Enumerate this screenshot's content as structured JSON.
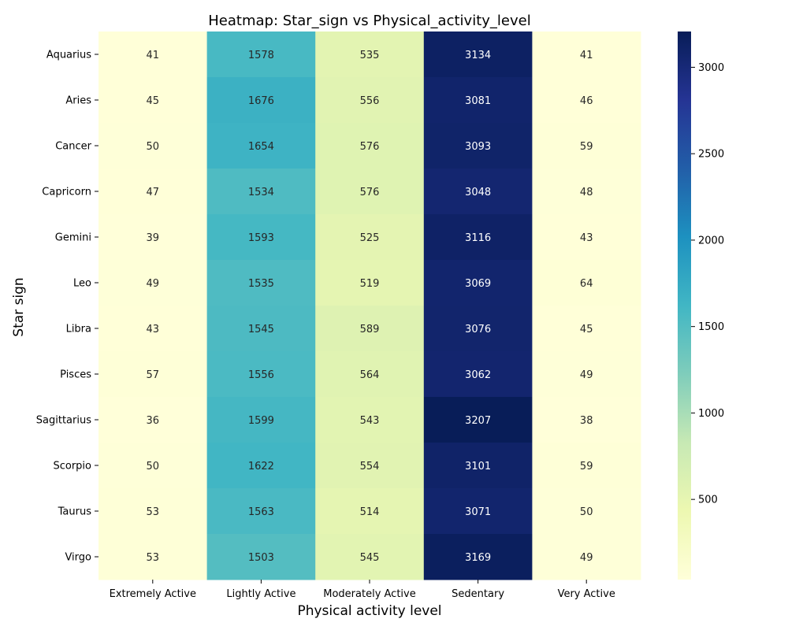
{
  "chart_data": {
    "type": "heatmap",
    "title": "Heatmap: Star_sign vs Physical_activity_level",
    "xlabel": "Physical activity level",
    "ylabel": "Star sign",
    "columns": [
      "Extremely Active",
      "Lightly Active",
      "Moderately Active",
      "Sedentary",
      "Very Active"
    ],
    "rows": [
      "Aquarius",
      "Aries",
      "Cancer",
      "Capricorn",
      "Gemini",
      "Leo",
      "Libra",
      "Pisces",
      "Sagittarius",
      "Scorpio",
      "Taurus",
      "Virgo"
    ],
    "values": [
      [
        41,
        1578,
        535,
        3134,
        41
      ],
      [
        45,
        1676,
        556,
        3081,
        46
      ],
      [
        50,
        1654,
        576,
        3093,
        59
      ],
      [
        47,
        1534,
        576,
        3048,
        48
      ],
      [
        39,
        1593,
        525,
        3116,
        43
      ],
      [
        49,
        1535,
        519,
        3069,
        64
      ],
      [
        43,
        1545,
        589,
        3076,
        45
      ],
      [
        57,
        1556,
        564,
        3062,
        49
      ],
      [
        36,
        1599,
        543,
        3207,
        38
      ],
      [
        50,
        1622,
        554,
        3101,
        59
      ],
      [
        53,
        1563,
        514,
        3071,
        50
      ],
      [
        53,
        1503,
        545,
        3169,
        49
      ]
    ],
    "colorbar": {
      "colormap": "YlGnBu",
      "range": [
        36,
        3207
      ],
      "ticks": [
        500,
        1000,
        1500,
        2000,
        2500,
        3000
      ]
    }
  }
}
